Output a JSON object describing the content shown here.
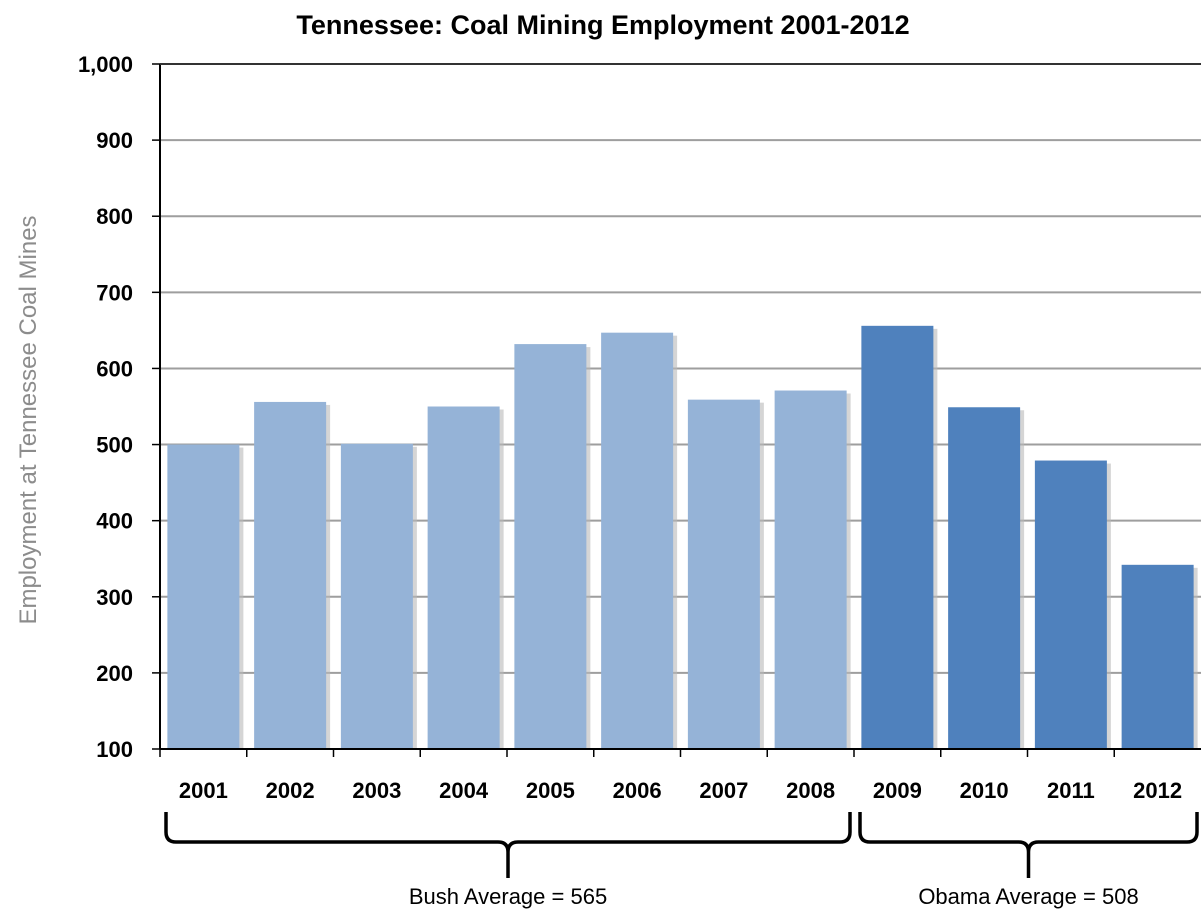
{
  "chart_data": {
    "type": "bar",
    "title": "Tennessee: Coal Mining Employment 2001-2012",
    "xlabel": "",
    "ylabel": "Employment at Tennessee Coal Mines",
    "ylim": [
      100,
      1000
    ],
    "yticks": [
      100,
      200,
      300,
      400,
      500,
      600,
      700,
      800,
      900,
      1000
    ],
    "ytick_labels": [
      "100",
      "200",
      "300",
      "400",
      "500",
      "600",
      "700",
      "800",
      "900",
      "1,000"
    ],
    "grid": true,
    "categories": [
      "2001",
      "2002",
      "2003",
      "2004",
      "2005",
      "2006",
      "2007",
      "2008",
      "2009",
      "2010",
      "2011",
      "2012"
    ],
    "values": [
      500,
      556,
      501,
      550,
      632,
      647,
      559,
      571,
      656,
      549,
      479,
      342
    ],
    "colors": {
      "bush": "#95b3d7",
      "obama": "#4f81bd",
      "grid": "#9e9e9e",
      "axis": "#000000",
      "ylabel": "#8c8c8c"
    },
    "groups": [
      {
        "label": "Bush Average = 565",
        "from": 0,
        "to": 7,
        "color_key": "bush"
      },
      {
        "label": "Obama Average = 508",
        "from": 8,
        "to": 11,
        "color_key": "obama"
      }
    ]
  }
}
